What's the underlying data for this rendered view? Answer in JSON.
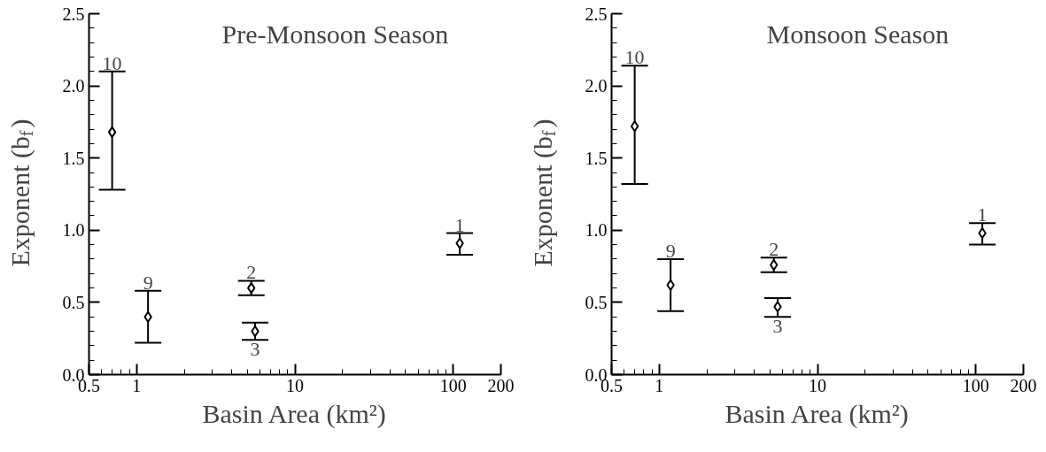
{
  "chart_data": [
    {
      "type": "scatter",
      "title": "Pre-Monsoon Season",
      "xlabel": "Basin Area (km²)",
      "ylabel": "Exponent (b$_{f}$)",
      "x": [
        0.7,
        1.18,
        5.3,
        5.6,
        110
      ],
      "series": [
        {
          "color": "#000000",
          "values": [
            1.68,
            0.4,
            0.6,
            0.3,
            0.91
          ],
          "errors": [
            [
              1.28,
              2.1
            ],
            [
              0.22,
              0.58
            ],
            [
              0.55,
              0.65
            ],
            [
              0.24,
              0.36
            ],
            [
              0.83,
              0.98
            ]
          ]
        }
      ],
      "annotations": [
        "10",
        "9",
        "2",
        "3",
        "1"
      ],
      "log": "x",
      "marker": "diamond",
      "xlim": [
        0.5,
        200
      ],
      "xticks": [
        0.5,
        1,
        10,
        100,
        200
      ],
      "ylim": [
        0,
        2.5
      ],
      "yticks": [
        {
          "value": 0,
          "label": "0.0"
        },
        {
          "value": 0.5,
          "label": "0.5"
        },
        {
          "value": 1,
          "label": "1.0"
        },
        {
          "value": 1.5,
          "label": "1.5"
        },
        {
          "value": 2,
          "label": "2.0"
        },
        {
          "value": 2.5,
          "label": "2.5"
        }
      ]
    },
    {
      "type": "scatter",
      "title": "Monsoon Season",
      "xlabel": "Basin Area (km²)",
      "ylabel": "Exponent (b$_{f}$)",
      "x": [
        0.7,
        1.18,
        5.3,
        5.6,
        110
      ],
      "series": [
        {
          "color": "#000000",
          "values": [
            1.72,
            0.62,
            0.76,
            0.47,
            0.98
          ],
          "errors": [
            [
              1.32,
              2.14
            ],
            [
              0.44,
              0.8
            ],
            [
              0.71,
              0.81
            ],
            [
              0.4,
              0.53
            ],
            [
              0.9,
              1.05
            ]
          ]
        }
      ],
      "annotations": [
        "10",
        "9",
        "2",
        "3",
        "1"
      ],
      "log": "x",
      "marker": "diamond",
      "xlim": [
        0.5,
        200
      ],
      "xticks": [
        0.5,
        1,
        10,
        100,
        200
      ],
      "ylim": [
        0,
        2.5
      ],
      "yticks": [
        {
          "value": 0,
          "label": "0.0"
        },
        {
          "value": 0.5,
          "label": "0.5"
        },
        {
          "value": 1,
          "label": "1.0"
        },
        {
          "value": 1.5,
          "label": "1.5"
        },
        {
          "value": 2,
          "label": "2.0"
        },
        {
          "value": 2.5,
          "label": "2.5"
        }
      ]
    }
  ]
}
